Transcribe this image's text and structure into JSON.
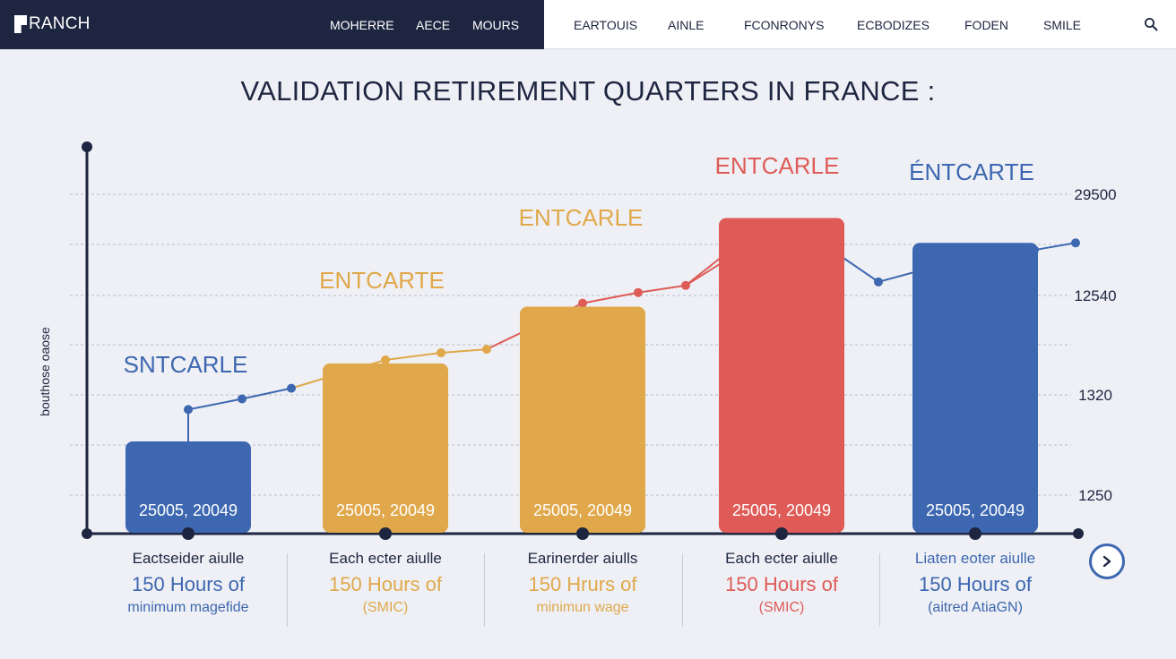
{
  "header": {
    "logo_text": "RANCH",
    "nav_dark": [
      "MOHERRE",
      "AECE",
      "MOURS"
    ],
    "nav_light": [
      "EARTOUIS",
      "AINLE",
      "FCONRONYS",
      "ECBODIZES",
      "FODEN",
      "SMILE"
    ]
  },
  "title": "VALIDATION RETIREMENT QUARTERS IN FRANCE :",
  "colors": {
    "blue": "#3d67b0",
    "yellow": "#e0a84a",
    "red": "#de5b57",
    "navy": "#1e2540"
  },
  "chart_data": {
    "type": "bar",
    "title": "VALIDATION RETIREMENT QUARTERS IN FRANCE :",
    "ylabel": "bouthose oaose",
    "right_axis_ticks": [
      "29500",
      "12540",
      "1320",
      "1250"
    ],
    "categories": [
      "SNTCARLE",
      "ENTCARTE",
      "ENTCARLE",
      "ENTCARLE",
      "ÉNTCARTE"
    ],
    "bar_labels": [
      "25005, 20049",
      "25005, 20049",
      "25005, 20049",
      "25005, 20049",
      "25005, 20049"
    ],
    "values": [
      0.26,
      0.48,
      0.64,
      0.89,
      0.82
    ],
    "value_scale": "relative 0-1 of axis height (unlabeled axis)",
    "bar_colors": [
      "#3d67b0",
      "#e0a84a",
      "#e0a84a",
      "#de5b57",
      "#3d67b0"
    ],
    "trend_line": {
      "points": [
        {
          "after_bar": 0,
          "level": 0.35,
          "color": "#3d67b0"
        },
        {
          "after_bar": 0,
          "level": 0.38,
          "color": "#3d67b0"
        },
        {
          "after_bar": 0,
          "level": 0.41,
          "color": "#3d67b0"
        },
        {
          "after_bar": 1,
          "level": 0.49,
          "color": "#e0a84a"
        },
        {
          "after_bar": 1,
          "level": 0.51,
          "color": "#e0a84a"
        },
        {
          "after_bar": 1,
          "level": 0.52,
          "color": "#e0a84a"
        },
        {
          "after_bar": 2,
          "level": 0.65,
          "color": "#de5b57"
        },
        {
          "after_bar": 2,
          "level": 0.68,
          "color": "#de5b57"
        },
        {
          "after_bar": 2,
          "level": 0.7,
          "color": "#de5b57"
        },
        {
          "after_bar": 3,
          "level": 0.87,
          "color": "#de5b57"
        },
        {
          "after_bar": 4,
          "level": 0.71,
          "color": "#3d67b0"
        },
        {
          "after_bar": 4,
          "level": 0.78,
          "color": "#3d67b0"
        },
        {
          "after_bar": 4,
          "level": 0.8,
          "color": "#3d67b0"
        },
        {
          "after_bar": 4,
          "level": 0.82,
          "color": "#3d67b0"
        }
      ]
    },
    "grid": true,
    "legend": "none"
  },
  "captions": [
    {
      "line1": "Eactseider aiulle",
      "line2": "150 Hours of",
      "line3": "minimum magefide",
      "color": "#3d67b0"
    },
    {
      "line1": "Each ecter aiulle",
      "line2": "150 Hours of",
      "line3": "(SMIC)",
      "color": "#e0a84a"
    },
    {
      "line1": "Earinerder aiulls",
      "line2": "150 Hrurs of",
      "line3": "minimun wage",
      "color": "#e0a84a"
    },
    {
      "line1": "Each ecter aiulle",
      "line2": "150 Hours of",
      "line3": "(SMIC)",
      "color": "#de5b57"
    },
    {
      "line1": "Liaten eoter aiulle",
      "line2": "150 Hours of",
      "line3": "(aitred AtiaGN)",
      "color": "#3d67b0"
    }
  ]
}
